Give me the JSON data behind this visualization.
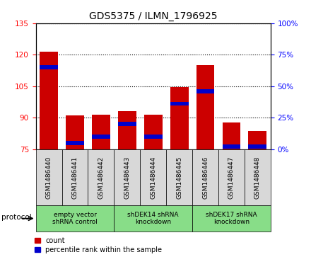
{
  "title": "GDS5375 / ILMN_1796925",
  "samples": [
    "GSM1486440",
    "GSM1486441",
    "GSM1486442",
    "GSM1486443",
    "GSM1486444",
    "GSM1486445",
    "GSM1486446",
    "GSM1486447",
    "GSM1486448"
  ],
  "counts": [
    121.5,
    91.0,
    91.5,
    93.0,
    91.5,
    104.5,
    115.0,
    87.5,
    83.5
  ],
  "percentile_ranks": [
    65,
    5,
    10,
    20,
    10,
    36,
    46,
    2,
    2
  ],
  "ylim_left": [
    75,
    135
  ],
  "ylim_right": [
    0,
    100
  ],
  "yticks_left": [
    75,
    90,
    105,
    120,
    135
  ],
  "yticks_right": [
    0,
    25,
    50,
    75,
    100
  ],
  "bar_color": "#cc0000",
  "percentile_color": "#0000cc",
  "bar_width": 0.7,
  "groups": [
    {
      "label": "empty vector\nshRNA control",
      "start": 0,
      "end": 3,
      "color": "#99ee99"
    },
    {
      "label": "shDEK14 shRNA\nknockdown",
      "start": 3,
      "end": 6,
      "color": "#99ee99"
    },
    {
      "label": "shDEK17 shRNA\nknockdown",
      "start": 6,
      "end": 9,
      "color": "#99ee99"
    }
  ],
  "protocol_label": "protocol",
  "legend_count_label": "count",
  "legend_percentile_label": "percentile rank within the sample",
  "bg_color": "#d8d8d8",
  "group_color": "#88dd88"
}
